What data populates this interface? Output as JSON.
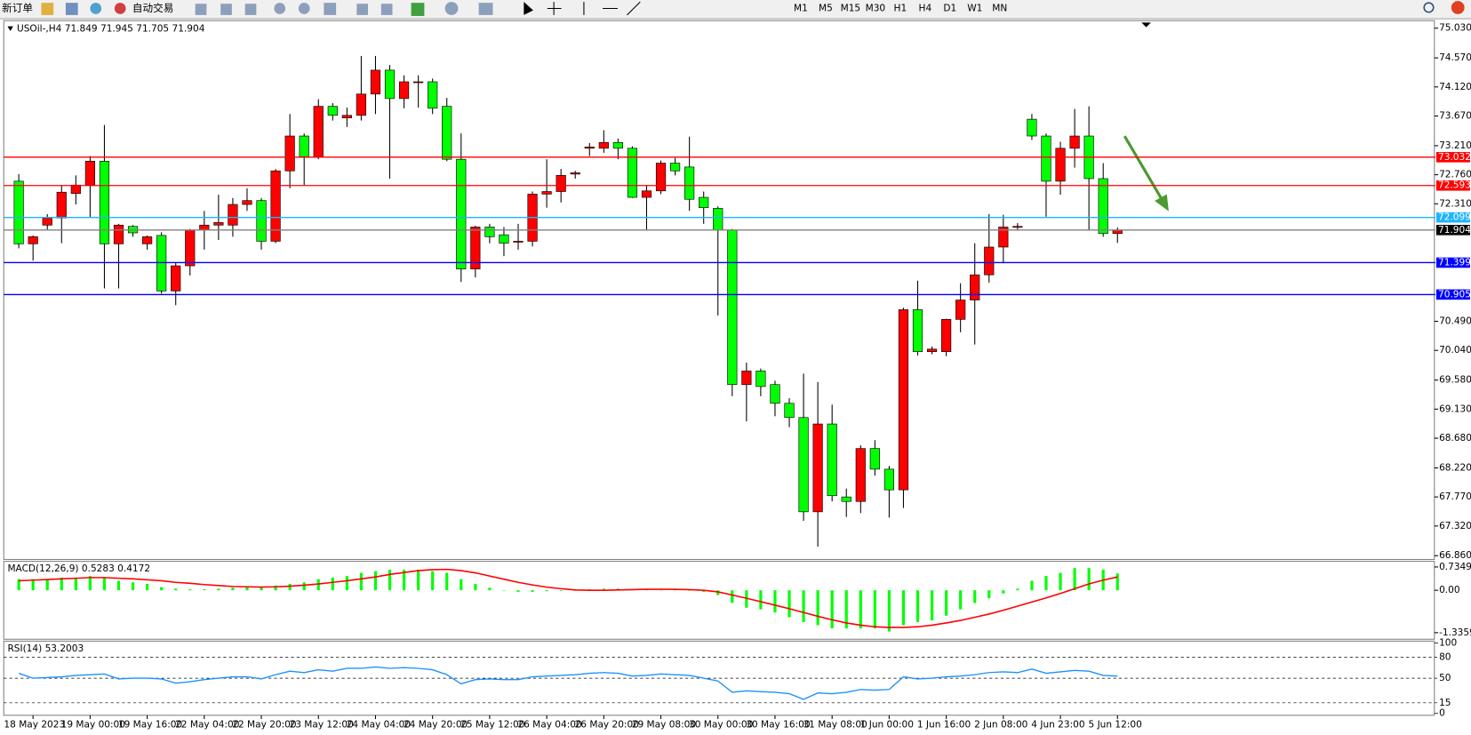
{
  "toolbar": {
    "new_order": "新订单",
    "auto_trading": "自动交易",
    "timeframes": [
      "M1",
      "M5",
      "M15",
      "M30",
      "H1",
      "H4",
      "D1",
      "W1",
      "MN"
    ]
  },
  "chart_data": {
    "type": "candlestick",
    "title": "USOil-,H4  71.849 71.945 71.705 71.904",
    "open": [
      72.66,
      71.69,
      71.98,
      72.09,
      72.47,
      72.6,
      72.97,
      71.69,
      71.96,
      71.69,
      71.82,
      70.96,
      71.35,
      71.9,
      71.98,
      71.98,
      72.3,
      72.36,
      71.73,
      72.82,
      73.36,
      73.04,
      73.82,
      73.64,
      73.68,
      74.01,
      74.38,
      73.94,
      74.19,
      74.2,
      73.82,
      73.0,
      71.3,
      71.95,
      71.83,
      71.72,
      71.73,
      72.46,
      72.5,
      72.77,
      73.17,
      73.17,
      73.26,
      73.17,
      72.41,
      72.51,
      72.94,
      72.88,
      72.41,
      72.24,
      71.9,
      69.51,
      69.72,
      69.51,
      69.22,
      69.0,
      67.54,
      68.9,
      67.77,
      67.7,
      68.52,
      68.2,
      67.88,
      70.67,
      70.02,
      70.02,
      70.52,
      70.82,
      71.21,
      71.64,
      71.95,
      73.62,
      73.36,
      72.66,
      73.17,
      73.36,
      72.7,
      71.849
    ],
    "high": [
      72.77,
      71.82,
      72.15,
      72.6,
      72.75,
      73.05,
      73.53,
      72.0,
      71.98,
      71.82,
      71.87,
      71.4,
      71.92,
      72.2,
      72.45,
      72.4,
      72.55,
      72.4,
      72.85,
      73.7,
      73.4,
      73.93,
      73.87,
      73.8,
      74.6,
      74.6,
      74.46,
      74.3,
      74.3,
      74.25,
      73.95,
      73.4,
      71.97,
      72.0,
      71.95,
      72.0,
      72.5,
      73.0,
      72.85,
      72.82,
      73.25,
      73.45,
      73.32,
      73.2,
      72.6,
      72.98,
      73.02,
      73.35,
      72.5,
      72.27,
      71.92,
      69.85,
      69.76,
      69.57,
      69.3,
      69.68,
      69.55,
      69.2,
      67.9,
      68.57,
      68.65,
      68.25,
      70.7,
      71.12,
      70.1,
      70.53,
      71.08,
      71.7,
      72.15,
      72.14,
      72.01,
      73.7,
      73.4,
      73.27,
      73.78,
      73.82,
      72.94,
      71.945
    ],
    "low": [
      71.62,
      71.43,
      71.9,
      71.7,
      72.3,
      72.1,
      71.0,
      71.0,
      71.8,
      71.6,
      70.92,
      70.74,
      71.2,
      71.6,
      71.75,
      71.8,
      72.2,
      71.6,
      71.7,
      72.55,
      72.6,
      73.0,
      73.6,
      73.5,
      73.6,
      73.7,
      72.7,
      73.79,
      73.8,
      73.7,
      72.97,
      71.1,
      71.17,
      71.7,
      71.5,
      71.6,
      71.65,
      72.25,
      72.33,
      72.7,
      73.05,
      73.1,
      73.0,
      72.4,
      71.9,
      72.46,
      72.75,
      72.2,
      72.0,
      70.58,
      69.33,
      68.94,
      69.33,
      69.02,
      68.85,
      67.4,
      67.0,
      67.7,
      67.46,
      67.52,
      68.1,
      67.45,
      67.6,
      69.96,
      69.98,
      69.95,
      70.32,
      70.13,
      71.09,
      71.39,
      71.9,
      73.3,
      72.11,
      72.45,
      72.87,
      71.9,
      71.8,
      71.705
    ],
    "close": [
      71.69,
      71.8,
      72.09,
      72.49,
      72.6,
      72.97,
      71.69,
      71.98,
      71.86,
      71.8,
      70.96,
      71.35,
      71.9,
      71.98,
      72.02,
      72.3,
      72.36,
      71.73,
      72.82,
      73.36,
      73.04,
      73.82,
      73.68,
      73.68,
      74.01,
      74.38,
      73.94,
      74.2,
      74.2,
      73.79,
      73.0,
      71.3,
      71.95,
      71.8,
      71.7,
      71.73,
      72.46,
      72.5,
      72.75,
      72.79,
      73.19,
      73.26,
      73.17,
      72.41,
      72.51,
      72.94,
      72.82,
      72.38,
      72.25,
      71.9,
      69.51,
      69.72,
      69.48,
      69.22,
      69.0,
      67.54,
      68.9,
      67.79,
      67.7,
      68.52,
      68.2,
      67.88,
      70.67,
      70.02,
      70.06,
      70.52,
      70.82,
      71.21,
      71.64,
      71.95,
      71.96,
      73.36,
      72.66,
      73.17,
      73.36,
      72.7,
      71.85,
      71.904
    ],
    "up_color": "#ff0000",
    "down_color": "#00ff00",
    "ylim": [
      66.86,
      75.03
    ],
    "yticks": [
      {
        "value": 75.03,
        "label": "75.030"
      },
      {
        "value": 74.57,
        "label": "74.570"
      },
      {
        "value": 74.12,
        "label": "74.120"
      },
      {
        "value": 73.67,
        "label": "73.670"
      },
      {
        "value": 73.21,
        "label": "73.210"
      },
      {
        "value": 72.76,
        "label": "72.760"
      },
      {
        "value": 72.31,
        "label": "72.310"
      },
      {
        "value": 70.49,
        "label": "70.490"
      },
      {
        "value": 70.04,
        "label": "70.040"
      },
      {
        "value": 69.58,
        "label": "69.580"
      },
      {
        "value": 69.13,
        "label": "69.130"
      },
      {
        "value": 68.68,
        "label": "68.680"
      },
      {
        "value": 68.22,
        "label": "68.220"
      },
      {
        "value": 67.77,
        "label": "67.770"
      },
      {
        "value": 67.32,
        "label": "67.320"
      },
      {
        "value": 66.86,
        "label": "66.860"
      }
    ],
    "levels": [
      {
        "value": 73.032,
        "color": "#ff0000"
      },
      {
        "value": 72.593,
        "color": "#ff0000"
      },
      {
        "value": 72.099,
        "color": "#1eb4ff"
      },
      {
        "value": 71.904,
        "color": "#000000"
      },
      {
        "value": 71.399,
        "color": "#0000ff"
      },
      {
        "value": 70.905,
        "color": "#0000ff"
      }
    ],
    "x_labels": [
      "18 May 2023",
      "19 May 00:00",
      "19 May 16:00",
      "22 May 04:00",
      "22 May 20:00",
      "23 May 12:00",
      "24 May 04:00",
      "24 May 20:00",
      "25 May 12:00",
      "26 May 04:00",
      "26 May 20:00",
      "29 May 08:00",
      "30 May 00:00",
      "30 May 16:00",
      "31 May 08:00",
      "1 Jun 00:00",
      "1 Jun 16:00",
      "2 Jun 08:00",
      "4 Jun 23:00",
      "5 Jun 12:00"
    ],
    "macd": {
      "title": "MACD(12,26,9) 0.5283 0.4172",
      "color": "#00ff00",
      "signal_color": "#ff0000",
      "histogram": [
        0.35,
        0.35,
        0.35,
        0.4,
        0.4,
        0.45,
        0.4,
        0.3,
        0.25,
        0.2,
        0.1,
        0.05,
        0.03,
        0.03,
        0.05,
        0.08,
        0.1,
        0.1,
        0.15,
        0.2,
        0.25,
        0.35,
        0.4,
        0.45,
        0.55,
        0.6,
        0.65,
        0.65,
        0.65,
        0.6,
        0.55,
        0.35,
        0.2,
        0.08,
        0.0,
        -0.05,
        -0.05,
        -0.03,
        -0.02,
        0.0,
        0.03,
        0.05,
        0.05,
        0.03,
        0.02,
        0.02,
        0.02,
        0.0,
        -0.05,
        -0.15,
        -0.4,
        -0.55,
        -0.6,
        -0.7,
        -0.85,
        -1.0,
        -1.1,
        -1.2,
        -1.2,
        -1.2,
        -1.2,
        -1.3,
        -1.1,
        -1.0,
        -0.95,
        -0.8,
        -0.6,
        -0.4,
        -0.25,
        -0.1,
        0.05,
        0.3,
        0.45,
        0.55,
        0.7,
        0.7,
        0.65,
        0.53
      ],
      "signal": [
        0.3,
        0.32,
        0.34,
        0.36,
        0.38,
        0.4,
        0.4,
        0.38,
        0.36,
        0.33,
        0.3,
        0.25,
        0.22,
        0.18,
        0.15,
        0.12,
        0.11,
        0.1,
        0.11,
        0.13,
        0.16,
        0.2,
        0.25,
        0.3,
        0.36,
        0.42,
        0.5,
        0.56,
        0.62,
        0.65,
        0.66,
        0.62,
        0.55,
        0.45,
        0.35,
        0.25,
        0.17,
        0.1,
        0.05,
        0.01,
        0.0,
        0.0,
        0.01,
        0.02,
        0.03,
        0.03,
        0.03,
        0.02,
        0.0,
        -0.05,
        -0.15,
        -0.25,
        -0.36,
        -0.47,
        -0.58,
        -0.7,
        -0.82,
        -0.93,
        -1.03,
        -1.1,
        -1.15,
        -1.17,
        -1.17,
        -1.15,
        -1.1,
        -1.03,
        -0.95,
        -0.85,
        -0.75,
        -0.63,
        -0.5,
        -0.37,
        -0.24,
        -0.1,
        0.05,
        0.2,
        0.32,
        0.42
      ],
      "ylim": [
        -1.3359,
        0.7349
      ],
      "yticks": [
        0.7349,
        {
          "value": 0,
          "label": "0.00"
        },
        -1.3359
      ]
    },
    "rsi": {
      "title": "RSI(14) 53.2003",
      "color": "#1e90ff",
      "values": [
        57,
        50,
        51,
        52,
        54,
        55,
        56,
        49,
        50,
        50,
        49,
        43,
        45,
        48,
        50,
        52,
        52,
        49,
        55,
        60,
        58,
        62,
        60,
        64,
        64,
        66,
        64,
        65,
        64,
        62,
        55,
        42,
        48,
        49,
        48,
        48,
        52,
        53,
        54,
        55,
        57,
        58,
        57,
        53,
        54,
        56,
        55,
        54,
        50,
        46,
        30,
        32,
        31,
        30,
        28,
        20,
        29,
        28,
        30,
        34,
        33,
        34,
        52,
        49,
        50,
        52,
        53,
        55,
        58,
        59,
        58,
        63,
        57,
        59,
        61,
        60,
        54,
        53
      ],
      "ylim": [
        0,
        100
      ],
      "yticks": [
        100,
        80,
        50,
        15,
        0
      ]
    }
  }
}
